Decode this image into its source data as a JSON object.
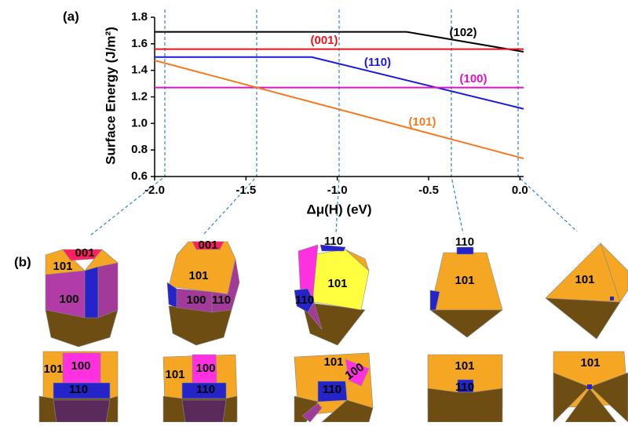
{
  "panel_labels": {
    "a": "(a)",
    "b": "(b)"
  },
  "chart_data": {
    "type": "line",
    "ylabel": "Surface Energy (J/m²)",
    "xlabel": "Δμ(H) (eV)",
    "xlim": [
      -2.0,
      0.02
    ],
    "ylim": [
      0.6,
      1.8
    ],
    "xticks": [
      {
        "value": -2.0,
        "label": "-2.0"
      },
      {
        "value": -1.5,
        "label": "-1.5"
      },
      {
        "value": -1.0,
        "label": "-1.0"
      },
      {
        "value": -0.5,
        "label": "-0.5"
      },
      {
        "value": 0.0,
        "label": "0.0"
      }
    ],
    "yticks": [
      0.6,
      0.8,
      {
        "value": 1.0,
        "label": "1.0"
      },
      1.2,
      1.4,
      1.6,
      1.8
    ],
    "series": [
      {
        "name": "(102)",
        "color": "#000000",
        "x": [
          -2.0,
          -0.62,
          0.02
        ],
        "values": [
          1.69,
          1.69,
          1.54
        ]
      },
      {
        "name": "(001)",
        "color": "#e8141c",
        "x": [
          -2.0,
          0.02
        ],
        "values": [
          1.56,
          1.56
        ]
      },
      {
        "name": "(110)",
        "color": "#1a1adf",
        "x": [
          -2.0,
          -1.14,
          0.02
        ],
        "values": [
          1.5,
          1.5,
          1.11
        ]
      },
      {
        "name": "(100)",
        "color": "#e010c8",
        "x": [
          -2.0,
          0.02
        ],
        "values": [
          1.27,
          1.27
        ]
      },
      {
        "name": "(101)",
        "color": "#f47a20",
        "x": [
          -2.0,
          0.02
        ],
        "values": [
          1.475,
          0.736
        ]
      }
    ]
  },
  "crystals": {
    "top": [
      [
        "001",
        "101",
        "100"
      ],
      [
        "001",
        "101",
        "100",
        "110"
      ],
      [
        "110",
        "101",
        "110"
      ],
      [
        "110",
        "101"
      ],
      [
        "101"
      ]
    ],
    "bottom": [
      [
        "101",
        "100",
        "110"
      ],
      [
        "101",
        "100",
        "110"
      ],
      [
        "101",
        "100",
        "110"
      ],
      [
        "101",
        "110"
      ],
      [
        "101"
      ]
    ]
  }
}
